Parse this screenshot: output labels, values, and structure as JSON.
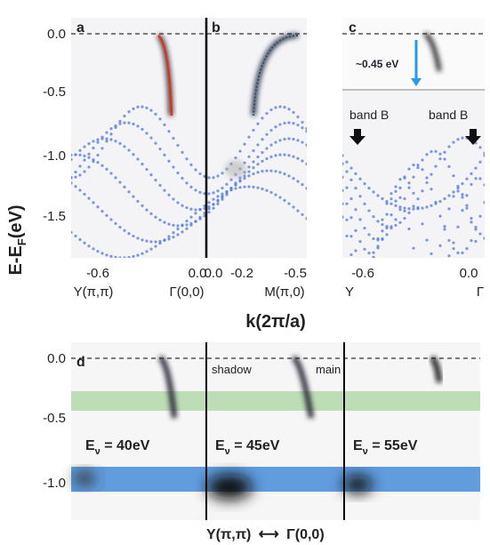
{
  "y_axis": {
    "label": "E-E",
    "label_sub": "F",
    "label_unit": "(eV)",
    "ticks_top": [
      "0.0",
      "-0.5",
      "-1.0",
      "-1.5"
    ],
    "ticks_bottom": [
      "0.0",
      "-0.5",
      "-1.0"
    ]
  },
  "x_axis": {
    "label": "k(2π/a)"
  },
  "panel_a": {
    "label": "a",
    "ticks": [
      "-0.6",
      "0.0"
    ],
    "points": [
      "Y(π,π)",
      "Γ(0,0)"
    ]
  },
  "panel_b": {
    "label": "b",
    "ticks": [
      "0.0",
      "-0.2",
      "-0.5"
    ],
    "points": [
      "M(π,0)"
    ]
  },
  "panel_c": {
    "label": "c",
    "ticks": [
      "-0.6",
      "0.0"
    ],
    "points": [
      "Y",
      "Γ"
    ],
    "annotation": "~0.45 eV",
    "band_labels": [
      "band B",
      "band B"
    ]
  },
  "panel_d": {
    "label": "d",
    "shadow": "shadow",
    "main": "main",
    "energies": [
      {
        "e": "E",
        "sub": "ν",
        "rest": " = 40eV"
      },
      {
        "e": "E",
        "sub": "ν",
        "rest": " = 45eV"
      },
      {
        "e": "E",
        "sub": "ν",
        "rest": " = 55eV"
      }
    ],
    "bottom_left": "Y(π,π)",
    "bottom_arrow": "⟷",
    "bottom_right": "Γ(0,0)"
  }
}
